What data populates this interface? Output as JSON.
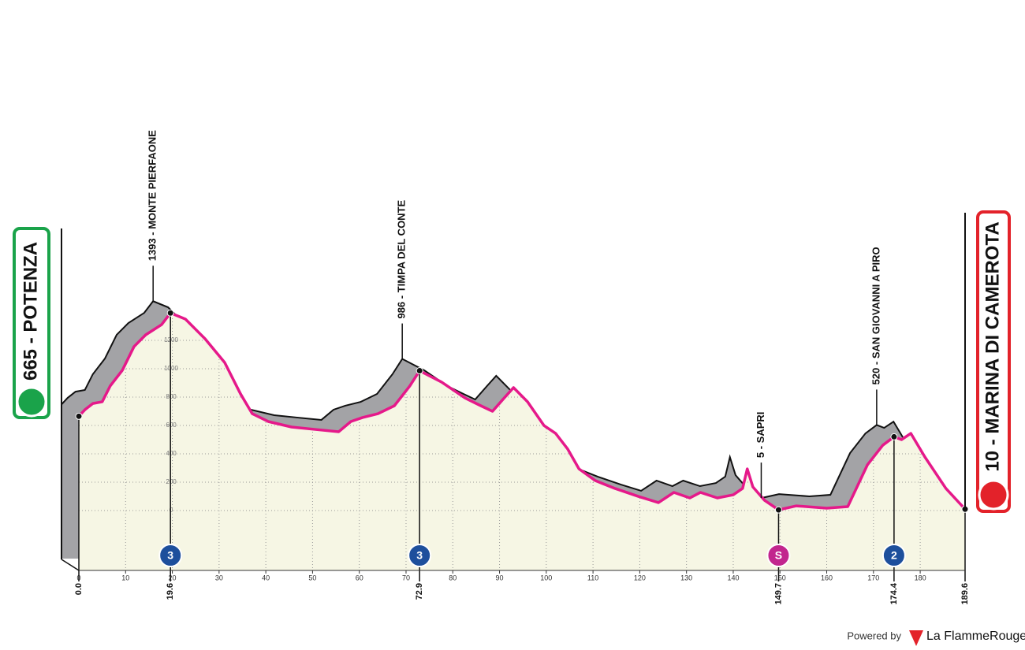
{
  "chart_data": {
    "type": "area",
    "x": [
      0,
      1.3,
      3,
      5,
      6.7,
      9.3,
      11.8,
      14.3,
      17.7,
      19.6,
      22.8,
      27,
      31.2,
      34.6,
      37.1,
      40.5,
      45.5,
      50.6,
      55.6,
      58.2,
      60.7,
      64,
      67.5,
      70.8,
      72.9,
      77.6,
      82.6,
      86,
      88.5,
      91,
      93,
      96,
      99.5,
      102,
      104.6,
      107,
      110.5,
      114.7,
      119.7,
      124,
      127.3,
      130.7,
      133,
      136.6,
      140,
      142,
      143,
      144.2,
      146.7,
      149.7,
      153.5,
      160,
      164.5,
      168.7,
      172,
      174.4,
      176,
      178,
      181,
      185.5,
      189.6
    ],
    "values": [
      665,
      711,
      755,
      767,
      878,
      989,
      1156,
      1239,
      1311,
      1393,
      1350,
      1211,
      1044,
      822,
      683,
      628,
      589,
      572,
      556,
      628,
      656,
      683,
      739,
      878,
      986,
      906,
      794,
      739,
      700,
      794,
      867,
      767,
      600,
      544,
      433,
      294,
      211,
      156,
      100,
      56,
      128,
      89,
      128,
      89,
      111,
      156,
      294,
      167,
      72,
      5,
      33,
      17,
      28,
      322,
      461,
      520,
      500,
      544,
      378,
      156,
      10
    ],
    "xlim": [
      0,
      189.6
    ],
    "ylim": [
      -422,
      2600
    ],
    "xticks": [
      0,
      10,
      20,
      30,
      40,
      50,
      60,
      70,
      80,
      90,
      100,
      110,
      120,
      130,
      140,
      150,
      160,
      170,
      180
    ],
    "yticks": [
      0,
      200,
      400,
      600,
      800,
      1000,
      1200
    ],
    "grid": true,
    "line_color": "#e5198a",
    "fill_color": "#f6f6e4",
    "shadow_color": "#a3a3a6"
  },
  "km_markers": [
    {
      "value": 0,
      "label": "0.0"
    },
    19.6,
    72.9,
    149.7,
    174.4,
    189.6
  ],
  "climbs": [
    {
      "km": 19.6,
      "label": "1393 - MONTE PIERFAONE",
      "badge": "3",
      "badge_color": "#1d4f9c"
    },
    {
      "km": 72.9,
      "label": "986 - TIMPA DEL CONTE",
      "badge": "3",
      "badge_color": "#1d4f9c"
    },
    {
      "km": 149.7,
      "label": "5 - SAPRI",
      "badge": "S",
      "badge_color": "#c2268e"
    },
    {
      "km": 174.4,
      "label": "520 - SAN GIOVANNI A PIRO",
      "badge": "2",
      "badge_color": "#1d4f9c"
    }
  ],
  "start": {
    "label": "665 - POTENZA"
  },
  "finish": {
    "label": "10 - MARINA DI CAMEROTA"
  },
  "footer": {
    "powered_by": "Powered by",
    "brand": "La FlammeRouge"
  }
}
